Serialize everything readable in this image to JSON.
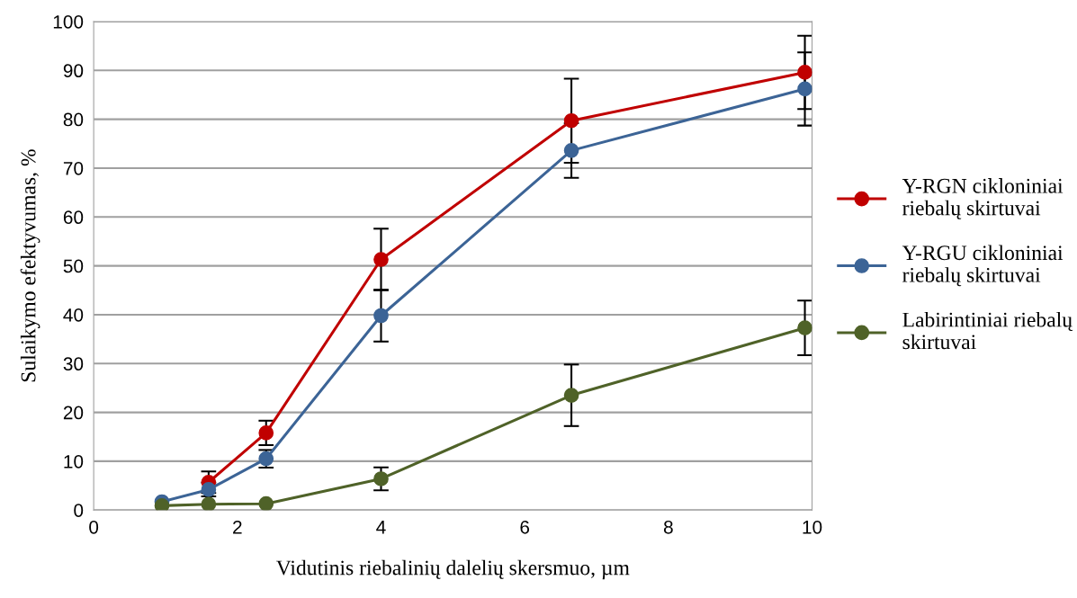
{
  "chart_data": {
    "type": "line",
    "xlabel": "Vidutinis riebalinių dalelių skersmuo, µm",
    "ylabel": "Sulaikymo efektyvumas, %",
    "x": [
      0.95,
      1.6,
      2.4,
      4.0,
      6.65,
      9.9
    ],
    "xlim": [
      0,
      10
    ],
    "xticks": [
      0,
      2,
      4,
      6,
      8,
      10
    ],
    "ylim": [
      0,
      100
    ],
    "yticks": [
      0,
      10,
      20,
      30,
      40,
      50,
      60,
      70,
      80,
      90,
      100
    ],
    "grid": "y",
    "legend": "right",
    "marker": "circle",
    "line_style": "solid",
    "series": [
      {
        "name": "Y-RGN cikloniniai\nriebalų skirtuvai",
        "color": "#c00000",
        "values": [
          null,
          5.7,
          15.8,
          51.3,
          79.7,
          89.6
        ],
        "errors": [
          null,
          2.2,
          2.5,
          6.3,
          8.6,
          7.5
        ]
      },
      {
        "name": "Y-RGU cikloniniai\nriebalų skirtuvai",
        "color": "#3c6496",
        "values": [
          1.7,
          4.2,
          10.5,
          39.8,
          73.6,
          86.2
        ],
        "errors": [
          null,
          1.4,
          1.8,
          5.3,
          5.6,
          7.5
        ]
      },
      {
        "name": "Labirintiniai riebalų\nskirtuvai",
        "color": "#4f6228",
        "values": [
          0.9,
          1.2,
          1.3,
          6.4,
          23.5,
          37.3
        ],
        "errors": [
          null,
          null,
          null,
          2.35,
          6.3,
          5.6
        ]
      }
    ]
  }
}
